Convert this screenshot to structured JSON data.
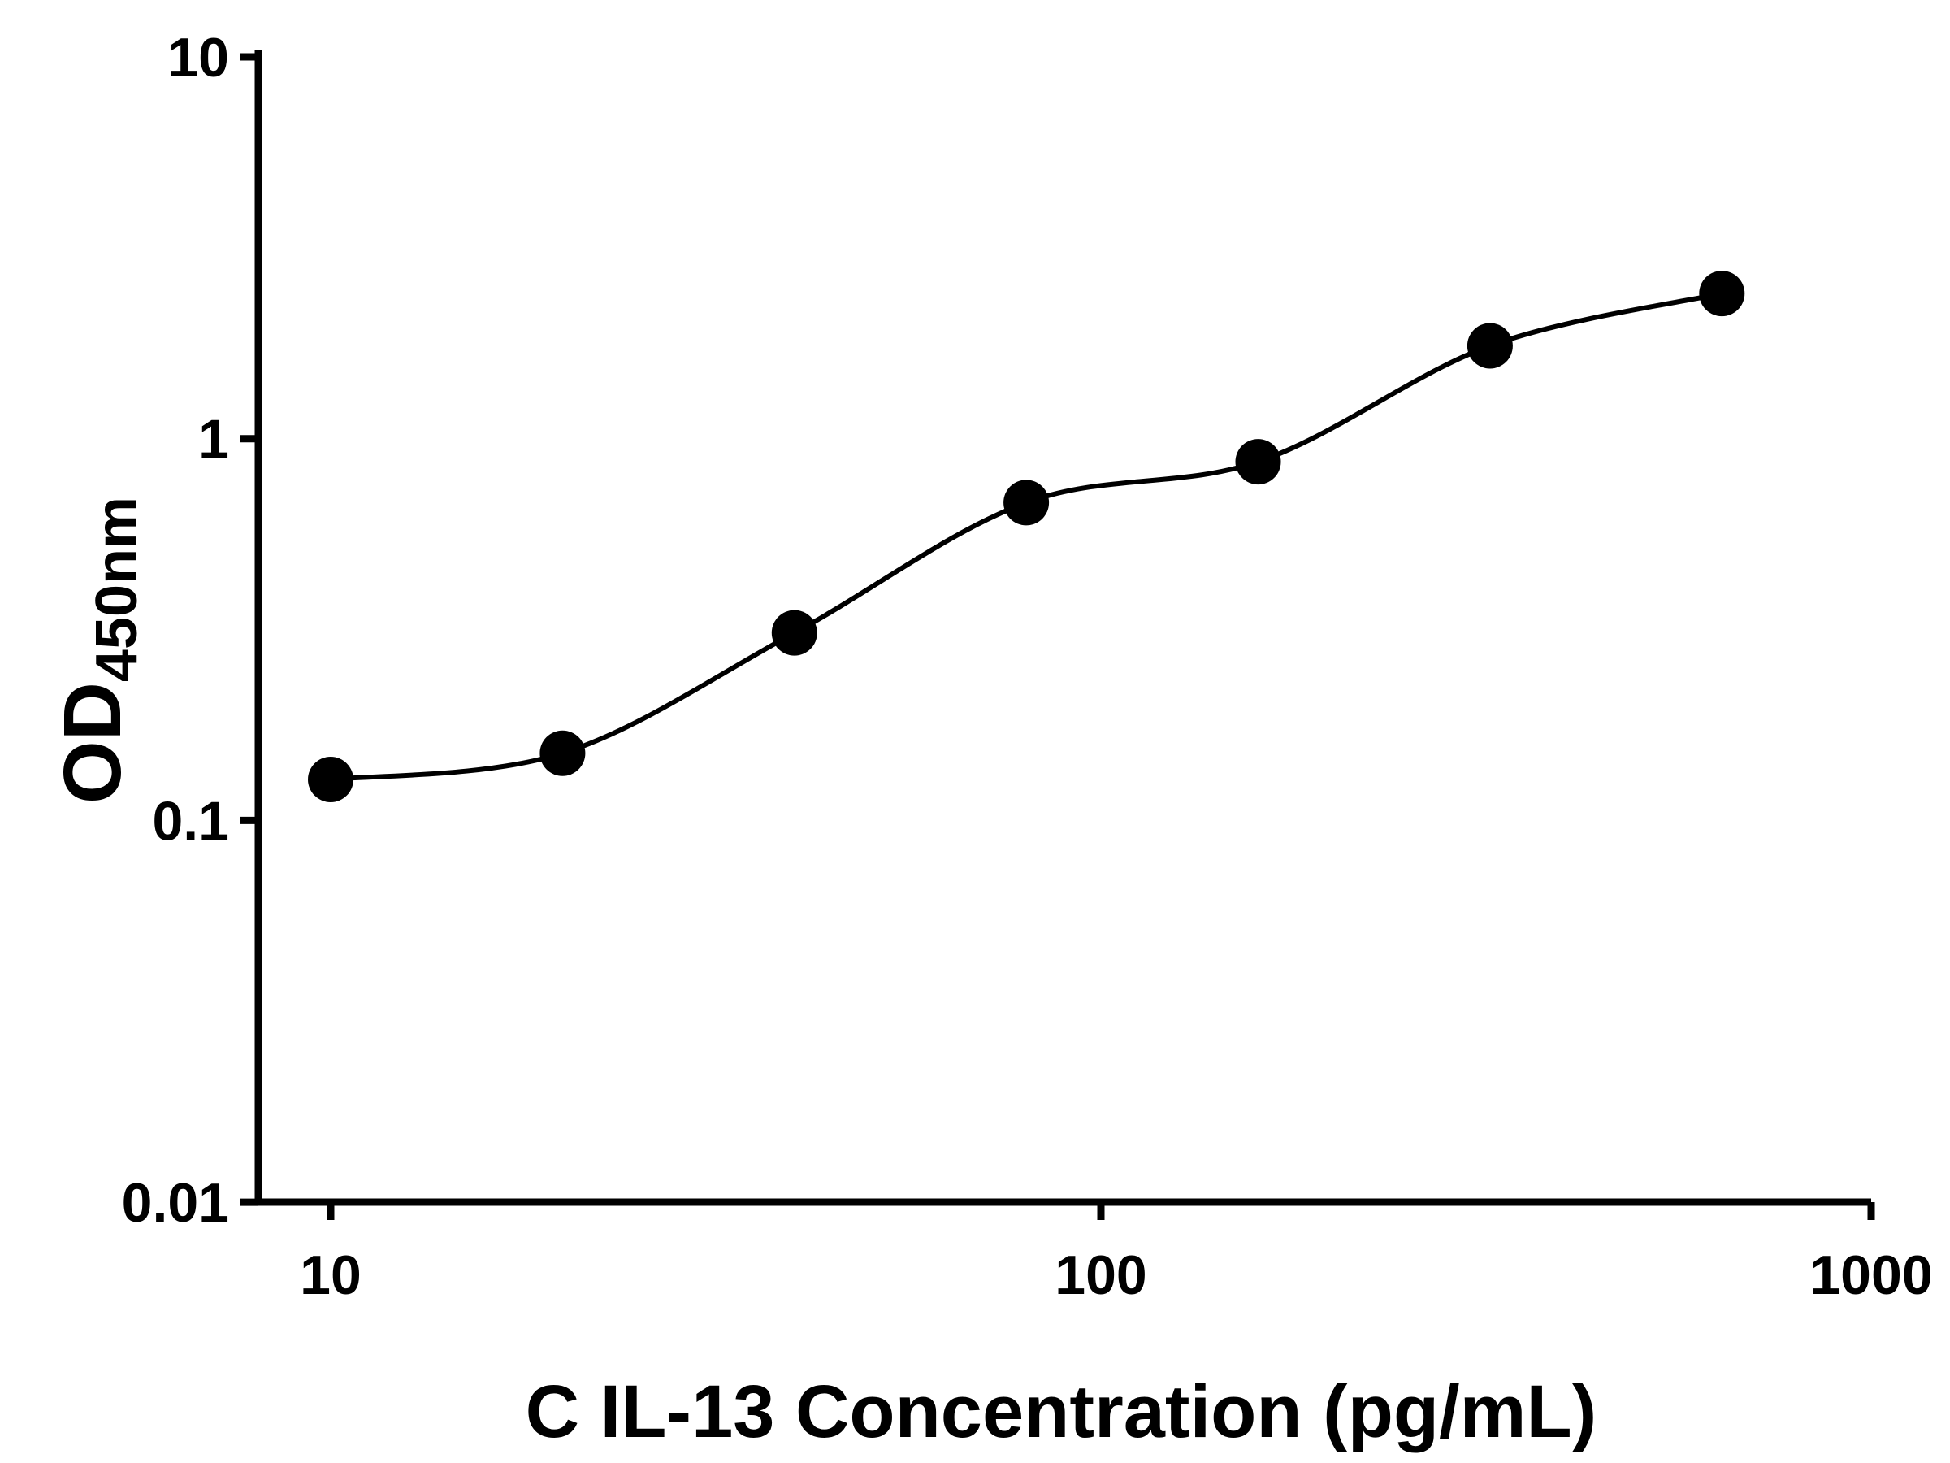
{
  "chart_data": {
    "type": "scatter",
    "title": "",
    "xlabel": "C IL-13 Concentration (pg/mL)",
    "ylabel_main": "OD",
    "ylabel_sub": "450nm",
    "x_scale": "log",
    "y_scale": "log",
    "xlim": [
      8,
      1000
    ],
    "ylim": [
      0.01,
      10
    ],
    "x_ticks": [
      10,
      100,
      1000
    ],
    "y_ticks": [
      10,
      1,
      0.1,
      0.01
    ],
    "grid": false,
    "legend": "none",
    "points": [
      {
        "x": 10,
        "y": 0.128
      },
      {
        "x": 20,
        "y": 0.15
      },
      {
        "x": 40,
        "y": 0.31
      },
      {
        "x": 80,
        "y": 0.68
      },
      {
        "x": 160,
        "y": 0.87
      },
      {
        "x": 320,
        "y": 1.75
      },
      {
        "x": 640,
        "y": 2.4
      }
    ],
    "curve_type": "4PL standard curve fit through points",
    "marker_color": "#000000",
    "line_color": "#000000",
    "axis_color": "#000000",
    "background": "#ffffff"
  }
}
